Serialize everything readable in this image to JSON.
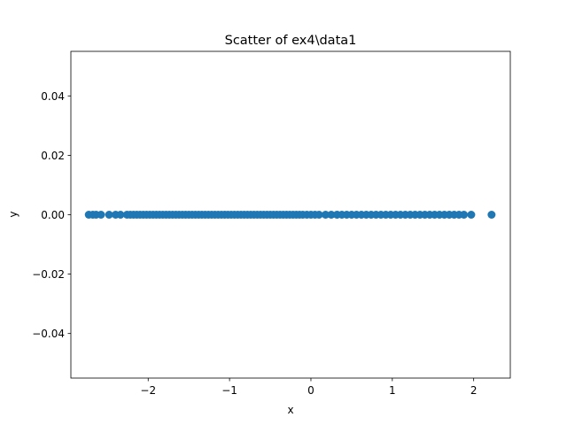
{
  "chart_data": {
    "type": "scatter",
    "title": "Scatter of ex4\\data1",
    "xlabel": "x",
    "ylabel": "y",
    "xlim": [
      -2.95,
      2.45
    ],
    "ylim": [
      -0.055,
      0.055
    ],
    "xticks": [
      {
        "value": -2,
        "label": "−2"
      },
      {
        "value": -1,
        "label": "−1"
      },
      {
        "value": 0,
        "label": "0"
      },
      {
        "value": 1,
        "label": "1"
      },
      {
        "value": 2,
        "label": "2"
      }
    ],
    "yticks": [
      {
        "value": -0.04,
        "label": "−0.04"
      },
      {
        "value": -0.02,
        "label": "−0.02"
      },
      {
        "value": 0.0,
        "label": "0.00"
      },
      {
        "value": 0.02,
        "label": "0.02"
      },
      {
        "value": 0.04,
        "label": "0.04"
      }
    ],
    "grid": false,
    "marker_color": "#1f77b4",
    "series": [
      {
        "x": [
          -2.73,
          -2.68,
          -2.64,
          -2.58,
          -2.48,
          -2.4,
          -2.34,
          -2.26,
          -2.22,
          -2.18,
          -2.14,
          -2.1,
          -2.06,
          -2.02,
          -1.98,
          -1.94,
          -1.9,
          -1.86,
          -1.82,
          -1.78,
          -1.74,
          -1.7,
          -1.66,
          -1.62,
          -1.58,
          -1.54,
          -1.5,
          -1.46,
          -1.42,
          -1.38,
          -1.34,
          -1.3,
          -1.26,
          -1.22,
          -1.18,
          -1.14,
          -1.1,
          -1.06,
          -1.02,
          -0.98,
          -0.94,
          -0.9,
          -0.86,
          -0.82,
          -0.78,
          -0.74,
          -0.7,
          -0.66,
          -0.62,
          -0.58,
          -0.54,
          -0.5,
          -0.46,
          -0.42,
          -0.38,
          -0.34,
          -0.3,
          -0.26,
          -0.22,
          -0.18,
          -0.14,
          -0.1,
          -0.05,
          0.0,
          0.05,
          0.1,
          0.18,
          0.25,
          0.32,
          0.38,
          0.44,
          0.5,
          0.56,
          0.62,
          0.68,
          0.74,
          0.8,
          0.86,
          0.92,
          0.98,
          1.04,
          1.1,
          1.16,
          1.22,
          1.28,
          1.34,
          1.4,
          1.46,
          1.52,
          1.58,
          1.64,
          1.7,
          1.76,
          1.82,
          1.88,
          1.97,
          2.22
        ],
        "y": [
          0,
          0,
          0,
          0,
          0,
          0,
          0,
          0,
          0,
          0,
          0,
          0,
          0,
          0,
          0,
          0,
          0,
          0,
          0,
          0,
          0,
          0,
          0,
          0,
          0,
          0,
          0,
          0,
          0,
          0,
          0,
          0,
          0,
          0,
          0,
          0,
          0,
          0,
          0,
          0,
          0,
          0,
          0,
          0,
          0,
          0,
          0,
          0,
          0,
          0,
          0,
          0,
          0,
          0,
          0,
          0,
          0,
          0,
          0,
          0,
          0,
          0,
          0,
          0,
          0,
          0,
          0,
          0,
          0,
          0,
          0,
          0,
          0,
          0,
          0,
          0,
          0,
          0,
          0,
          0,
          0,
          0,
          0,
          0,
          0,
          0,
          0,
          0,
          0,
          0,
          0,
          0,
          0,
          0,
          0,
          0,
          0
        ]
      }
    ]
  }
}
